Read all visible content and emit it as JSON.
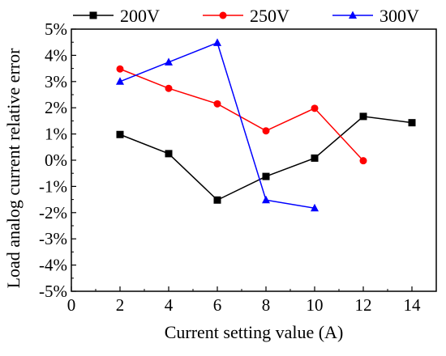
{
  "chart_data": {
    "type": "line",
    "xlabel": "Current setting value (A)",
    "ylabel": "Load analog current relative error",
    "xlim": [
      0,
      15
    ],
    "ylim": [
      -5,
      5
    ],
    "x_ticks": [
      0,
      2,
      4,
      6,
      8,
      10,
      12,
      14
    ],
    "x_tick_labels": [
      "0",
      "2",
      "4",
      "6",
      "8",
      "10",
      "12",
      "14"
    ],
    "y_ticks": [
      -5,
      -4,
      -3,
      -2,
      -1,
      0,
      1,
      2,
      3,
      4,
      5
    ],
    "y_tick_labels": [
      "-5%",
      "-4%",
      "-3%",
      "-2%",
      "-1%",
      "0%",
      "1%",
      "2%",
      "3%",
      "4%",
      "5%"
    ],
    "grid": false,
    "legend_position": "top",
    "series": [
      {
        "name": "200V",
        "color": "#000000",
        "marker": "square",
        "x": [
          2,
          4,
          6,
          8,
          10,
          12,
          14
        ],
        "y": [
          0.98,
          0.25,
          -1.52,
          -0.62,
          0.08,
          1.67,
          1.43
        ]
      },
      {
        "name": "250V",
        "color": "#ff0000",
        "marker": "circle",
        "x": [
          2,
          4,
          6,
          8,
          10,
          12
        ],
        "y": [
          3.48,
          2.74,
          2.15,
          1.12,
          1.98,
          -0.02
        ]
      },
      {
        "name": "300V",
        "color": "#0000ff",
        "marker": "triangle",
        "x": [
          2,
          4,
          6,
          8,
          10
        ],
        "y": [
          3.0,
          3.74,
          4.48,
          -1.52,
          -1.83
        ]
      }
    ]
  }
}
